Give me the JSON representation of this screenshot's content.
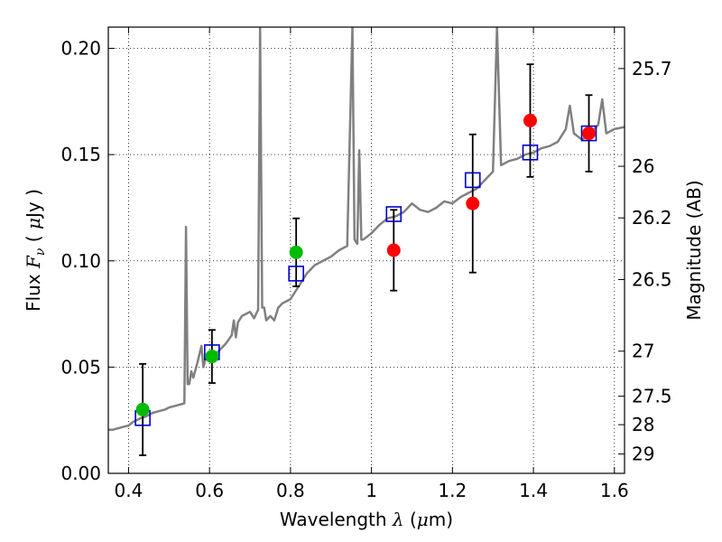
{
  "chart_data": {
    "type": "scatter",
    "xlabel_prefix": "Wavelength  ",
    "xlabel_symbol": "λ",
    "xlabel_unit_open": " (",
    "xlabel_unit_mu": "μ",
    "xlabel_unit_rest": "m)",
    "ylabel_prefix": "Flux  ",
    "ylabel_symbol": "F",
    "ylabel_sub": "ν",
    "ylabel_unit_open": "  ( ",
    "ylabel_unit_mu": "μ",
    "ylabel_unit_rest": "Jy )",
    "y2label": "Magnitude (AB)",
    "xlim": [
      0.35,
      1.625
    ],
    "ylim": [
      0.0,
      0.21
    ],
    "grid": true,
    "x_ticks": [
      {
        "value": 0.4,
        "label": "0.4"
      },
      {
        "value": 0.6,
        "label": "0.6"
      },
      {
        "value": 0.8,
        "label": "0.8"
      },
      {
        "value": 1.0,
        "label": "1"
      },
      {
        "value": 1.2,
        "label": "1.2"
      },
      {
        "value": 1.4,
        "label": "1.4"
      },
      {
        "value": 1.6,
        "label": "1.6"
      }
    ],
    "y_ticks": [
      {
        "value": 0.0,
        "label": "0.00"
      },
      {
        "value": 0.05,
        "label": "0.05"
      },
      {
        "value": 0.1,
        "label": "0.10"
      },
      {
        "value": 0.15,
        "label": "0.15"
      },
      {
        "value": 0.2,
        "label": "0.20"
      }
    ],
    "y2_ticks": [
      {
        "flux": 0.1905,
        "label": "25.7"
      },
      {
        "flux": 0.1445,
        "label": "26"
      },
      {
        "flux": 0.1202,
        "label": "26.2"
      },
      {
        "flux": 0.0912,
        "label": "26.5"
      },
      {
        "flux": 0.0575,
        "label": "27"
      },
      {
        "flux": 0.0363,
        "label": "27.5"
      },
      {
        "flux": 0.0229,
        "label": "28"
      },
      {
        "flux": 0.0091,
        "label": "29"
      }
    ],
    "series": [
      {
        "marker": "circle",
        "color": "#00bb00",
        "points": [
          {
            "x": 0.435,
            "y": 0.03,
            "err": 0.0215
          },
          {
            "x": 0.606,
            "y": 0.055,
            "err": 0.0125
          },
          {
            "x": 0.814,
            "y": 0.104,
            "err": 0.016
          }
        ]
      },
      {
        "marker": "circle",
        "color": "#ff0000",
        "points": [
          {
            "x": 1.055,
            "y": 0.105,
            "err": 0.019
          },
          {
            "x": 1.25,
            "y": 0.127,
            "err": 0.0325
          },
          {
            "x": 1.392,
            "y": 0.166,
            "err": 0.0265
          },
          {
            "x": 1.537,
            "y": 0.16,
            "err": 0.018
          }
        ]
      },
      {
        "marker": "square-open",
        "color": "#0000cc",
        "points": [
          {
            "x": 0.435,
            "y": 0.026
          },
          {
            "x": 0.606,
            "y": 0.057
          },
          {
            "x": 0.814,
            "y": 0.094
          },
          {
            "x": 1.055,
            "y": 0.122
          },
          {
            "x": 1.25,
            "y": 0.138
          },
          {
            "x": 1.392,
            "y": 0.151
          },
          {
            "x": 1.537,
            "y": 0.16
          }
        ]
      },
      {
        "marker": "line",
        "color": "#808080",
        "points": [
          {
            "x": 0.35,
            "y": 0.0205
          },
          {
            "x": 0.36,
            "y": 0.0205
          },
          {
            "x": 0.37,
            "y": 0.021
          },
          {
            "x": 0.38,
            "y": 0.0215
          },
          {
            "x": 0.39,
            "y": 0.022
          },
          {
            "x": 0.4,
            "y": 0.0225
          },
          {
            "x": 0.41,
            "y": 0.024
          },
          {
            "x": 0.42,
            "y": 0.025
          },
          {
            "x": 0.43,
            "y": 0.026
          },
          {
            "x": 0.44,
            "y": 0.0265
          },
          {
            "x": 0.45,
            "y": 0.0275
          },
          {
            "x": 0.46,
            "y": 0.0285
          },
          {
            "x": 0.47,
            "y": 0.029
          },
          {
            "x": 0.48,
            "y": 0.0295
          },
          {
            "x": 0.49,
            "y": 0.03
          },
          {
            "x": 0.5,
            "y": 0.031
          },
          {
            "x": 0.51,
            "y": 0.0315
          },
          {
            "x": 0.52,
            "y": 0.032
          },
          {
            "x": 0.53,
            "y": 0.0325
          },
          {
            "x": 0.538,
            "y": 0.033
          },
          {
            "x": 0.542,
            "y": 0.116
          },
          {
            "x": 0.546,
            "y": 0.042
          },
          {
            "x": 0.55,
            "y": 0.042
          },
          {
            "x": 0.555,
            "y": 0.048
          },
          {
            "x": 0.56,
            "y": 0.045
          },
          {
            "x": 0.57,
            "y": 0.052
          },
          {
            "x": 0.58,
            "y": 0.06
          },
          {
            "x": 0.585,
            "y": 0.05
          },
          {
            "x": 0.59,
            "y": 0.054
          },
          {
            "x": 0.6,
            "y": 0.056
          },
          {
            "x": 0.62,
            "y": 0.057
          },
          {
            "x": 0.64,
            "y": 0.061
          },
          {
            "x": 0.655,
            "y": 0.065
          },
          {
            "x": 0.66,
            "y": 0.072
          },
          {
            "x": 0.665,
            "y": 0.064
          },
          {
            "x": 0.67,
            "y": 0.071
          },
          {
            "x": 0.68,
            "y": 0.074
          },
          {
            "x": 0.7,
            "y": 0.076
          },
          {
            "x": 0.71,
            "y": 0.073
          },
          {
            "x": 0.72,
            "y": 0.077
          },
          {
            "x": 0.725,
            "y": 0.21
          },
          {
            "x": 0.73,
            "y": 0.078
          },
          {
            "x": 0.735,
            "y": 0.078
          },
          {
            "x": 0.74,
            "y": 0.072
          },
          {
            "x": 0.75,
            "y": 0.074
          },
          {
            "x": 0.76,
            "y": 0.072
          },
          {
            "x": 0.77,
            "y": 0.078
          },
          {
            "x": 0.78,
            "y": 0.08
          },
          {
            "x": 0.8,
            "y": 0.082
          },
          {
            "x": 0.82,
            "y": 0.088
          },
          {
            "x": 0.84,
            "y": 0.094
          },
          {
            "x": 0.86,
            "y": 0.098
          },
          {
            "x": 0.88,
            "y": 0.1
          },
          {
            "x": 0.9,
            "y": 0.102
          },
          {
            "x": 0.92,
            "y": 0.105
          },
          {
            "x": 0.94,
            "y": 0.107
          },
          {
            "x": 0.953,
            "y": 0.21
          },
          {
            "x": 0.958,
            "y": 0.11
          },
          {
            "x": 0.965,
            "y": 0.108
          },
          {
            "x": 0.97,
            "y": 0.152
          },
          {
            "x": 0.975,
            "y": 0.11
          },
          {
            "x": 0.98,
            "y": 0.11
          },
          {
            "x": 1.0,
            "y": 0.113
          },
          {
            "x": 1.02,
            "y": 0.117
          },
          {
            "x": 1.04,
            "y": 0.12
          },
          {
            "x": 1.06,
            "y": 0.121
          },
          {
            "x": 1.08,
            "y": 0.123
          },
          {
            "x": 1.1,
            "y": 0.127
          },
          {
            "x": 1.12,
            "y": 0.124
          },
          {
            "x": 1.14,
            "y": 0.123
          },
          {
            "x": 1.16,
            "y": 0.125
          },
          {
            "x": 1.18,
            "y": 0.128
          },
          {
            "x": 1.2,
            "y": 0.127
          },
          {
            "x": 1.22,
            "y": 0.13
          },
          {
            "x": 1.24,
            "y": 0.132
          },
          {
            "x": 1.26,
            "y": 0.134
          },
          {
            "x": 1.28,
            "y": 0.138
          },
          {
            "x": 1.3,
            "y": 0.142
          },
          {
            "x": 1.31,
            "y": 0.21
          },
          {
            "x": 1.32,
            "y": 0.145
          },
          {
            "x": 1.34,
            "y": 0.147
          },
          {
            "x": 1.36,
            "y": 0.148
          },
          {
            "x": 1.38,
            "y": 0.15
          },
          {
            "x": 1.4,
            "y": 0.151
          },
          {
            "x": 1.42,
            "y": 0.153
          },
          {
            "x": 1.44,
            "y": 0.154
          },
          {
            "x": 1.46,
            "y": 0.156
          },
          {
            "x": 1.48,
            "y": 0.162
          },
          {
            "x": 1.49,
            "y": 0.173
          },
          {
            "x": 1.5,
            "y": 0.16
          },
          {
            "x": 1.52,
            "y": 0.157
          },
          {
            "x": 1.54,
            "y": 0.16
          },
          {
            "x": 1.56,
            "y": 0.164
          },
          {
            "x": 1.57,
            "y": 0.176
          },
          {
            "x": 1.58,
            "y": 0.16
          },
          {
            "x": 1.6,
            "y": 0.162
          },
          {
            "x": 1.625,
            "y": 0.163
          }
        ]
      }
    ]
  }
}
